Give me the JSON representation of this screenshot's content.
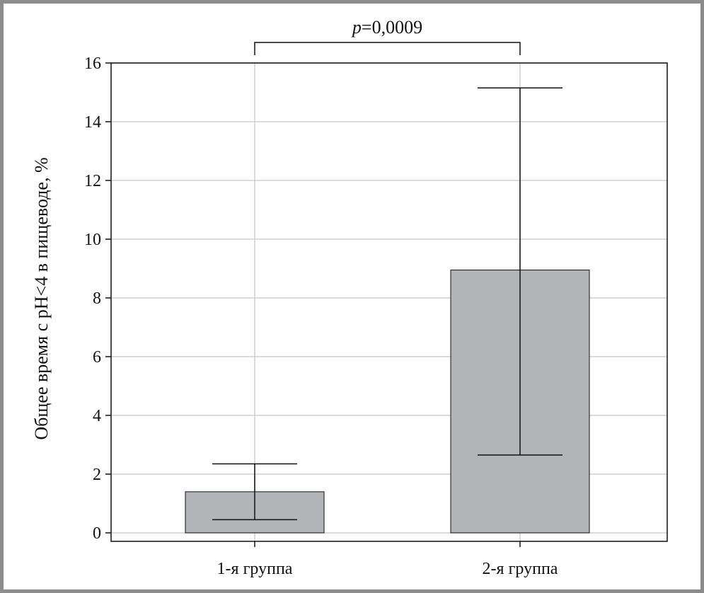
{
  "chart_data": {
    "type": "bar",
    "categories": [
      "1-я группа",
      "2-я группа"
    ],
    "values": [
      1.4,
      8.95
    ],
    "error_bars": [
      {
        "low": 0.45,
        "high": 2.35
      },
      {
        "low": 2.65,
        "high": 15.15
      }
    ],
    "ylabel": "Общее время с pH<4 в пищеводе, %",
    "xlabel": "",
    "ylim": [
      0,
      16
    ],
    "yticks": [
      0,
      2,
      4,
      6,
      8,
      10,
      12,
      14,
      16
    ],
    "grid": true,
    "bar_color": "#b3b4b8",
    "annotation": {
      "p_symbol": "p",
      "p_value": "=0,0009",
      "between": [
        0,
        1
      ]
    }
  }
}
